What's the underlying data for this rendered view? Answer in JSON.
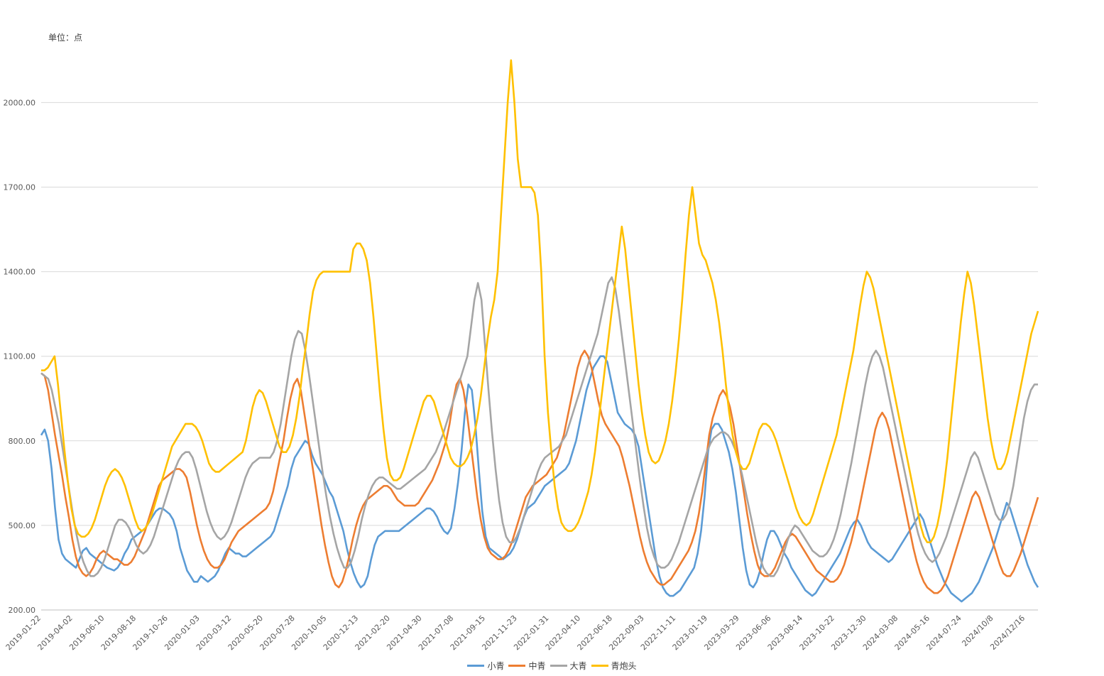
{
  "unit_label": "单位：点",
  "chart_data": {
    "type": "line",
    "title": "",
    "ylabel": "单位：点",
    "ylim": [
      200,
      2200
    ],
    "y_ticks": [
      "200.00",
      "500.00",
      "800.00",
      "1100.00",
      "1400.00",
      "1700.00",
      "2000.00"
    ],
    "y_tick_values": [
      200,
      500,
      800,
      1100,
      1400,
      1700,
      2000
    ],
    "x_tick_labels": [
      "2019-01-22",
      "2019-04-02",
      "2019-06-10",
      "2019-08-18",
      "2019-10-26",
      "2020-01-03",
      "2020-03-12",
      "2020-05-20",
      "2020-07-28",
      "2020-10-05",
      "2020-12-13",
      "2021-02-20",
      "2021-04-30",
      "2021-07-08",
      "2021-09-15",
      "2021-11-23",
      "2022-01-31",
      "2022-04-10",
      "2022-06-18",
      "2022-09-03",
      "2022-11-11",
      "2023-01-19",
      "2023-03-29",
      "2023-06-06",
      "2023-08-14",
      "2023-10-22",
      "2023-12-30",
      "2024-03-08",
      "2024-05-16",
      "2024-07-24",
      "2024/10/8",
      "2024/12/16"
    ],
    "grid": true,
    "legend_position": "bottom",
    "x_label_every": 2,
    "series": [
      {
        "name": "小青",
        "color": "#5B9BD5",
        "values": [
          820,
          840,
          800,
          700,
          560,
          450,
          400,
          380,
          370,
          360,
          350,
          380,
          410,
          420,
          400,
          390,
          380,
          370,
          360,
          350,
          345,
          340,
          350,
          370,
          400,
          420,
          450,
          460,
          470,
          480,
          490,
          510,
          530,
          550,
          560,
          560,
          550,
          540,
          520,
          480,
          420,
          380,
          340,
          320,
          300,
          300,
          320,
          310,
          300,
          310,
          320,
          340,
          370,
          400,
          420,
          410,
          400,
          400,
          390,
          390,
          400,
          410,
          420,
          430,
          440,
          450,
          460,
          480,
          520,
          560,
          600,
          640,
          700,
          740,
          760,
          780,
          800,
          790,
          750,
          720,
          700,
          680,
          650,
          620,
          600,
          560,
          520,
          480,
          420,
          370,
          330,
          300,
          280,
          290,
          320,
          380,
          430,
          460,
          470,
          480,
          480,
          480,
          480,
          480,
          490,
          500,
          510,
          520,
          530,
          540,
          550,
          560,
          560,
          550,
          530,
          500,
          480,
          470,
          490,
          560,
          650,
          760,
          900,
          1000,
          980,
          860,
          700,
          550,
          460,
          420,
          410,
          400,
          390,
          380,
          390,
          400,
          420,
          450,
          490,
          530,
          560,
          570,
          580,
          600,
          620,
          640,
          650,
          660,
          670,
          680,
          690,
          700,
          720,
          760,
          800,
          860,
          920,
          980,
          1020,
          1060,
          1080,
          1100,
          1100,
          1080,
          1020,
          960,
          900,
          880,
          860,
          850,
          840,
          820,
          780,
          700,
          620,
          540,
          460,
          380,
          320,
          280,
          260,
          250,
          250,
          260,
          270,
          290,
          310,
          330,
          350,
          400,
          480,
          600,
          760,
          840,
          860,
          860,
          840,
          800,
          760,
          700,
          620,
          520,
          420,
          340,
          290,
          280,
          300,
          340,
          400,
          450,
          480,
          480,
          460,
          430,
          400,
          380,
          350,
          330,
          310,
          290,
          270,
          260,
          250,
          260,
          280,
          300,
          320,
          340,
          360,
          380,
          400,
          430,
          460,
          490,
          510,
          520,
          500,
          470,
          440,
          420,
          410,
          400,
          390,
          380,
          370,
          380,
          400,
          420,
          440,
          460,
          480,
          500,
          520,
          540,
          520,
          480,
          440,
          400,
          360,
          330,
          300,
          280,
          260,
          250,
          240,
          230,
          240,
          250,
          260,
          280,
          300,
          330,
          360,
          390,
          420,
          460,
          500,
          540,
          580,
          560,
          520,
          480,
          440,
          400,
          360,
          330,
          300,
          280
        ]
      },
      {
        "name": "中青",
        "color": "#ED7D31",
        "values": [
          1040,
          1030,
          980,
          900,
          820,
          750,
          680,
          600,
          530,
          450,
          390,
          350,
          330,
          320,
          330,
          350,
          380,
          400,
          410,
          400,
          390,
          380,
          380,
          370,
          360,
          360,
          370,
          390,
          420,
          450,
          480,
          520,
          560,
          600,
          640,
          660,
          670,
          680,
          690,
          700,
          700,
          690,
          670,
          620,
          560,
          500,
          450,
          410,
          380,
          360,
          350,
          350,
          360,
          380,
          410,
          440,
          460,
          480,
          490,
          500,
          510,
          520,
          530,
          540,
          550,
          560,
          580,
          620,
          680,
          740,
          800,
          880,
          950,
          1000,
          1020,
          980,
          900,
          820,
          740,
          660,
          580,
          500,
          430,
          370,
          320,
          290,
          280,
          300,
          340,
          390,
          450,
          500,
          540,
          570,
          590,
          600,
          610,
          620,
          630,
          640,
          640,
          630,
          610,
          590,
          580,
          570,
          570,
          570,
          570,
          580,
          600,
          620,
          640,
          660,
          690,
          720,
          760,
          800,
          860,
          940,
          1000,
          1020,
          980,
          900,
          800,
          700,
          600,
          520,
          460,
          420,
          400,
          390,
          380,
          380,
          390,
          410,
          440,
          480,
          520,
          560,
          600,
          620,
          640,
          650,
          660,
          670,
          680,
          700,
          720,
          740,
          780,
          820,
          880,
          940,
          1000,
          1060,
          1100,
          1120,
          1100,
          1060,
          1000,
          940,
          890,
          860,
          840,
          820,
          800,
          780,
          740,
          690,
          640,
          580,
          520,
          460,
          410,
          370,
          340,
          320,
          300,
          290,
          290,
          300,
          310,
          330,
          350,
          370,
          390,
          410,
          440,
          480,
          540,
          620,
          720,
          820,
          880,
          920,
          960,
          980,
          960,
          920,
          860,
          780,
          700,
          620,
          540,
          470,
          410,
          360,
          330,
          320,
          320,
          330,
          350,
          380,
          410,
          440,
          460,
          470,
          460,
          440,
          420,
          400,
          380,
          360,
          340,
          330,
          320,
          310,
          300,
          300,
          310,
          330,
          360,
          400,
          440,
          490,
          540,
          600,
          660,
          720,
          780,
          840,
          880,
          900,
          880,
          840,
          780,
          720,
          660,
          600,
          540,
          480,
          420,
          370,
          330,
          300,
          280,
          270,
          260,
          260,
          270,
          290,
          320,
          360,
          400,
          440,
          480,
          520,
          560,
          600,
          620,
          600,
          560,
          520,
          480,
          440,
          400,
          360,
          330,
          320,
          320,
          340,
          370,
          400,
          440,
          480,
          520,
          560,
          600
        ]
      },
      {
        "name": "大青",
        "color": "#A5A5A5",
        "values": [
          1040,
          1030,
          1020,
          980,
          920,
          860,
          780,
          700,
          620,
          540,
          470,
          410,
          370,
          340,
          320,
          320,
          330,
          350,
          380,
          420,
          460,
          500,
          520,
          520,
          510,
          490,
          460,
          430,
          410,
          400,
          410,
          430,
          460,
          500,
          540,
          580,
          620,
          660,
          700,
          730,
          750,
          760,
          760,
          740,
          700,
          650,
          600,
          550,
          510,
          480,
          460,
          450,
          460,
          480,
          510,
          550,
          590,
          630,
          670,
          700,
          720,
          730,
          740,
          740,
          740,
          740,
          760,
          800,
          860,
          940,
          1020,
          1100,
          1160,
          1190,
          1180,
          1120,
          1040,
          950,
          860,
          770,
          680,
          600,
          530,
          470,
          420,
          380,
          350,
          350,
          370,
          410,
          460,
          520,
          570,
          610,
          640,
          660,
          670,
          670,
          660,
          650,
          640,
          630,
          630,
          640,
          650,
          660,
          670,
          680,
          690,
          700,
          720,
          740,
          760,
          790,
          820,
          860,
          900,
          940,
          980,
          1020,
          1060,
          1100,
          1200,
          1300,
          1360,
          1300,
          1140,
          980,
          830,
          700,
          590,
          510,
          460,
          440,
          440,
          460,
          490,
          530,
          570,
          610,
          650,
          690,
          720,
          740,
          750,
          760,
          770,
          780,
          800,
          820,
          860,
          900,
          940,
          980,
          1020,
          1060,
          1100,
          1140,
          1180,
          1240,
          1300,
          1360,
          1380,
          1340,
          1260,
          1160,
          1060,
          960,
          860,
          760,
          660,
          570,
          490,
          430,
          390,
          360,
          350,
          350,
          360,
          380,
          410,
          440,
          480,
          520,
          560,
          600,
          640,
          680,
          720,
          760,
          790,
          810,
          820,
          830,
          830,
          820,
          800,
          770,
          730,
          680,
          620,
          560,
          500,
          440,
          390,
          350,
          330,
          320,
          320,
          340,
          370,
          410,
          450,
          480,
          500,
          490,
          470,
          450,
          430,
          410,
          400,
          390,
          390,
          400,
          420,
          450,
          490,
          540,
          600,
          660,
          720,
          790,
          860,
          930,
          1000,
          1060,
          1100,
          1120,
          1100,
          1060,
          1000,
          940,
          880,
          820,
          760,
          700,
          640,
          580,
          520,
          470,
          430,
          400,
          380,
          370,
          380,
          400,
          430,
          460,
          500,
          540,
          580,
          620,
          660,
          700,
          740,
          760,
          740,
          700,
          660,
          620,
          580,
          540,
          520,
          520,
          540,
          580,
          640,
          720,
          800,
          880,
          940,
          980,
          1000,
          1000
        ]
      },
      {
        "name": "青炮头",
        "color": "#FFC000",
        "values": [
          1050,
          1050,
          1060,
          1080,
          1100,
          1000,
          880,
          760,
          650,
          560,
          500,
          470,
          460,
          460,
          470,
          490,
          520,
          560,
          600,
          640,
          670,
          690,
          700,
          690,
          670,
          640,
          600,
          560,
          520,
          490,
          480,
          490,
          510,
          540,
          580,
          620,
          660,
          700,
          740,
          780,
          800,
          820,
          840,
          860,
          860,
          860,
          850,
          830,
          800,
          760,
          720,
          700,
          690,
          690,
          700,
          710,
          720,
          730,
          740,
          750,
          760,
          800,
          860,
          920,
          960,
          980,
          970,
          940,
          900,
          860,
          820,
          780,
          760,
          760,
          780,
          820,
          880,
          960,
          1060,
          1150,
          1250,
          1330,
          1370,
          1390,
          1400,
          1400,
          1400,
          1400,
          1400,
          1400,
          1400,
          1400,
          1400,
          1480,
          1500,
          1500,
          1480,
          1440,
          1360,
          1240,
          1100,
          960,
          840,
          740,
          680,
          660,
          660,
          670,
          700,
          740,
          780,
          820,
          860,
          900,
          940,
          960,
          960,
          940,
          900,
          860,
          820,
          780,
          740,
          720,
          710,
          710,
          720,
          740,
          770,
          820,
          880,
          960,
          1060,
          1160,
          1240,
          1300,
          1400,
          1600,
          1800,
          2000,
          2150,
          2000,
          1800,
          1700,
          1700,
          1700,
          1700,
          1680,
          1600,
          1400,
          1100,
          900,
          760,
          640,
          560,
          510,
          490,
          480,
          480,
          490,
          510,
          540,
          580,
          620,
          680,
          760,
          860,
          960,
          1060,
          1160,
          1260,
          1360,
          1460,
          1560,
          1480,
          1360,
          1240,
          1120,
          1000,
          900,
          820,
          760,
          730,
          720,
          730,
          760,
          800,
          860,
          940,
          1040,
          1160,
          1300,
          1460,
          1600,
          1700,
          1600,
          1500,
          1460,
          1440,
          1400,
          1360,
          1300,
          1220,
          1120,
          1000,
          900,
          820,
          760,
          720,
          700,
          700,
          720,
          760,
          800,
          840,
          860,
          860,
          850,
          830,
          800,
          760,
          720,
          680,
          640,
          600,
          560,
          530,
          510,
          500,
          510,
          540,
          580,
          620,
          660,
          700,
          740,
          780,
          820,
          880,
          940,
          1000,
          1060,
          1120,
          1200,
          1280,
          1350,
          1400,
          1380,
          1340,
          1280,
          1220,
          1160,
          1100,
          1040,
          980,
          920,
          860,
          800,
          740,
          680,
          620,
          560,
          500,
          460,
          440,
          440,
          460,
          500,
          560,
          640,
          740,
          860,
          980,
          1100,
          1220,
          1320,
          1400,
          1360,
          1280,
          1180,
          1080,
          980,
          880,
          800,
          740,
          700,
          700,
          720,
          760,
          820,
          880,
          940,
          1000,
          1060,
          1120,
          1180,
          1220,
          1260
        ]
      }
    ]
  }
}
